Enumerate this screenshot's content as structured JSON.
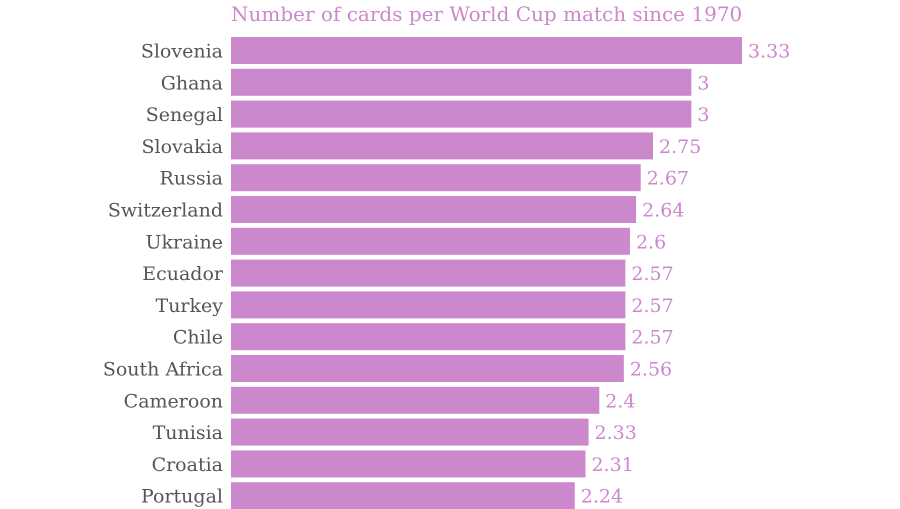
{
  "chart_data": {
    "type": "bar",
    "orientation": "horizontal",
    "title": "Number of cards per World Cup match since 1970",
    "xlabel": "",
    "ylabel": "",
    "categories": [
      "Slovenia",
      "Ghana",
      "Senegal",
      "Slovakia",
      "Russia",
      "Switzerland",
      "Ukraine",
      "Ecuador",
      "Turkey",
      "Chile",
      "South Africa",
      "Cameroon",
      "Tunisia",
      "Croatia",
      "Portugal"
    ],
    "values": [
      3.33,
      3,
      3,
      2.75,
      2.67,
      2.64,
      2.6,
      2.57,
      2.57,
      2.57,
      2.56,
      2.4,
      2.33,
      2.31,
      2.24
    ],
    "value_labels": [
      "3.33",
      "3",
      "3",
      "2.75",
      "2.67",
      "2.64",
      "2.6",
      "2.57",
      "2.57",
      "2.57",
      "2.56",
      "2.4",
      "2.33",
      "2.31",
      "2.24"
    ],
    "xlim": [
      0,
      3.33
    ],
    "grid": false,
    "bar_color": "#cc88cc",
    "label_color": "#555555"
  }
}
